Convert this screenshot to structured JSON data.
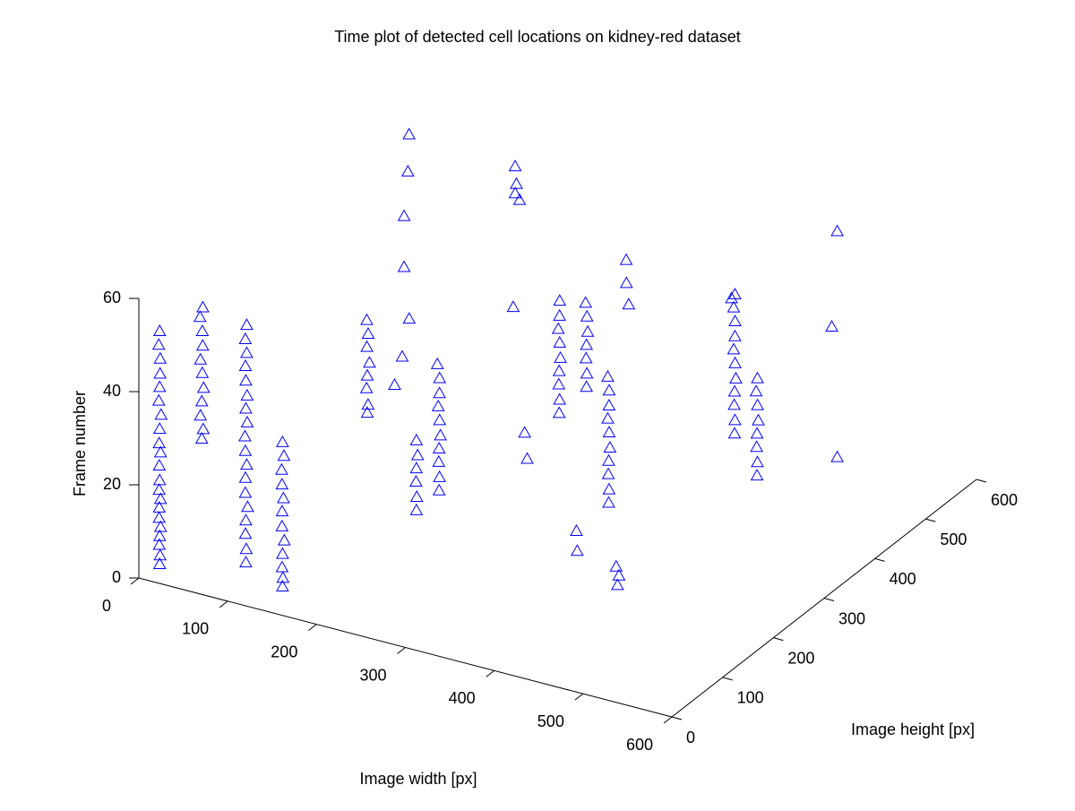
{
  "chart_data": {
    "type": "scatter3d",
    "title": "Time plot of detected cell locations on kidney-red dataset",
    "x_label": "Image width [px]",
    "y_label": "Image height [px]",
    "z_label": "Frame number",
    "color": "#0000ff",
    "marker": "triangle",
    "xlim": [
      0,
      600
    ],
    "ylim": [
      0,
      600
    ],
    "zlim": [
      0,
      60
    ],
    "xticks": [
      0,
      100,
      200,
      300,
      400,
      500,
      600
    ],
    "yticks": [
      0,
      100,
      200,
      300,
      400,
      500,
      600
    ],
    "zticks": [
      0,
      20,
      40,
      60
    ],
    "x": [
      8,
      9,
      7,
      8,
      9,
      8,
      7,
      9,
      8,
      8,
      7,
      9,
      8,
      8,
      9,
      7,
      8,
      9,
      8,
      7,
      8,
      44,
      45,
      43,
      44,
      46,
      44,
      43,
      45,
      44,
      42,
      44,
      89,
      90,
      88,
      89,
      91,
      89,
      88,
      90,
      89,
      88,
      90,
      89,
      91,
      89,
      88,
      90,
      89,
      90,
      136,
      137,
      135,
      136,
      138,
      136,
      135,
      137,
      136,
      135,
      137,
      136,
      196,
      198,
      194,
      196,
      199,
      195,
      197,
      196,
      209,
      205,
      190,
      150,
      110,
      80,
      51,
      237,
      238,
      236,
      237,
      239,
      237,
      270,
      271,
      269,
      270,
      272,
      270,
      269,
      271,
      270,
      268,
      346,
      344,
      348,
      349,
      347,
      348,
      350,
      348,
      347,
      349,
      348,
      373,
      374,
      372,
      373,
      375,
      373,
      372,
      386,
      387,
      385,
      386,
      388,
      386,
      385,
      387,
      386,
      385,
      412,
      413,
      411,
      498,
      499,
      497,
      498,
      500,
      498,
      497,
      499,
      498,
      497,
      499,
      517,
      518,
      516,
      517,
      519,
      517,
      516,
      518,
      179,
      185,
      175,
      200,
      370,
      360,
      380,
      585,
      517,
      540,
      300,
      320,
      250,
      450
    ],
    "y": [
      27,
      26,
      28,
      27,
      27,
      26,
      28,
      27,
      26,
      27,
      28,
      27,
      26,
      27,
      28,
      27,
      27,
      26,
      28,
      27,
      27,
      47,
      48,
      46,
      47,
      47,
      48,
      46,
      47,
      48,
      47,
      49,
      55,
      54,
      56,
      55,
      55,
      54,
      56,
      55,
      54,
      55,
      56,
      55,
      54,
      55,
      56,
      55,
      54,
      55,
      45,
      44,
      46,
      45,
      45,
      44,
      46,
      45,
      44,
      45,
      46,
      45,
      107,
      105,
      109,
      107,
      106,
      108,
      107,
      106,
      138,
      160,
      200,
      260,
      330,
      390,
      443,
      132,
      131,
      133,
      132,
      131,
      132,
      119,
      118,
      120,
      119,
      118,
      120,
      119,
      118,
      120,
      119,
      258,
      260,
      219,
      218,
      220,
      219,
      218,
      220,
      219,
      218,
      220,
      229,
      228,
      230,
      229,
      228,
      230,
      229,
      250,
      249,
      251,
      250,
      249,
      251,
      250,
      249,
      251,
      250,
      222,
      223,
      221,
      302,
      301,
      303,
      302,
      301,
      303,
      302,
      301,
      303,
      302,
      301,
      313,
      312,
      314,
      313,
      312,
      314,
      313,
      312,
      428,
      420,
      435,
      400,
      313,
      330,
      300,
      352,
      471,
      420,
      240,
      200,
      300,
      380
    ],
    "z": [
      1,
      3,
      5,
      7,
      9,
      11,
      13,
      15,
      17,
      19,
      22,
      25,
      27,
      30,
      33,
      36,
      39,
      42,
      45,
      48,
      51,
      28,
      30,
      33,
      36,
      39,
      42,
      45,
      48,
      51,
      54,
      56,
      3,
      6,
      9,
      12,
      15,
      18,
      21,
      24,
      27,
      30,
      33,
      36,
      39,
      42,
      45,
      48,
      51,
      54,
      1,
      3,
      5,
      8,
      11,
      14,
      17,
      20,
      23,
      26,
      29,
      32,
      36,
      38,
      41,
      44,
      47,
      50,
      53,
      56,
      40,
      44,
      48,
      52,
      55,
      58,
      60,
      15,
      18,
      21,
      24,
      27,
      30,
      22,
      25,
      28,
      31,
      34,
      37,
      40,
      43,
      46,
      49,
      1,
      5,
      34,
      37,
      40,
      43,
      46,
      49,
      52,
      55,
      58,
      40,
      43,
      46,
      49,
      52,
      55,
      58,
      14,
      17,
      20,
      23,
      26,
      29,
      32,
      35,
      38,
      41,
      0,
      2,
      4,
      30,
      33,
      36,
      39,
      42,
      45,
      48,
      51,
      54,
      57,
      60,
      21,
      24,
      27,
      30,
      33,
      36,
      39,
      42,
      55,
      58,
      60,
      57,
      55,
      58,
      52,
      25,
      60,
      45,
      20,
      30,
      45,
      50
    ]
  }
}
